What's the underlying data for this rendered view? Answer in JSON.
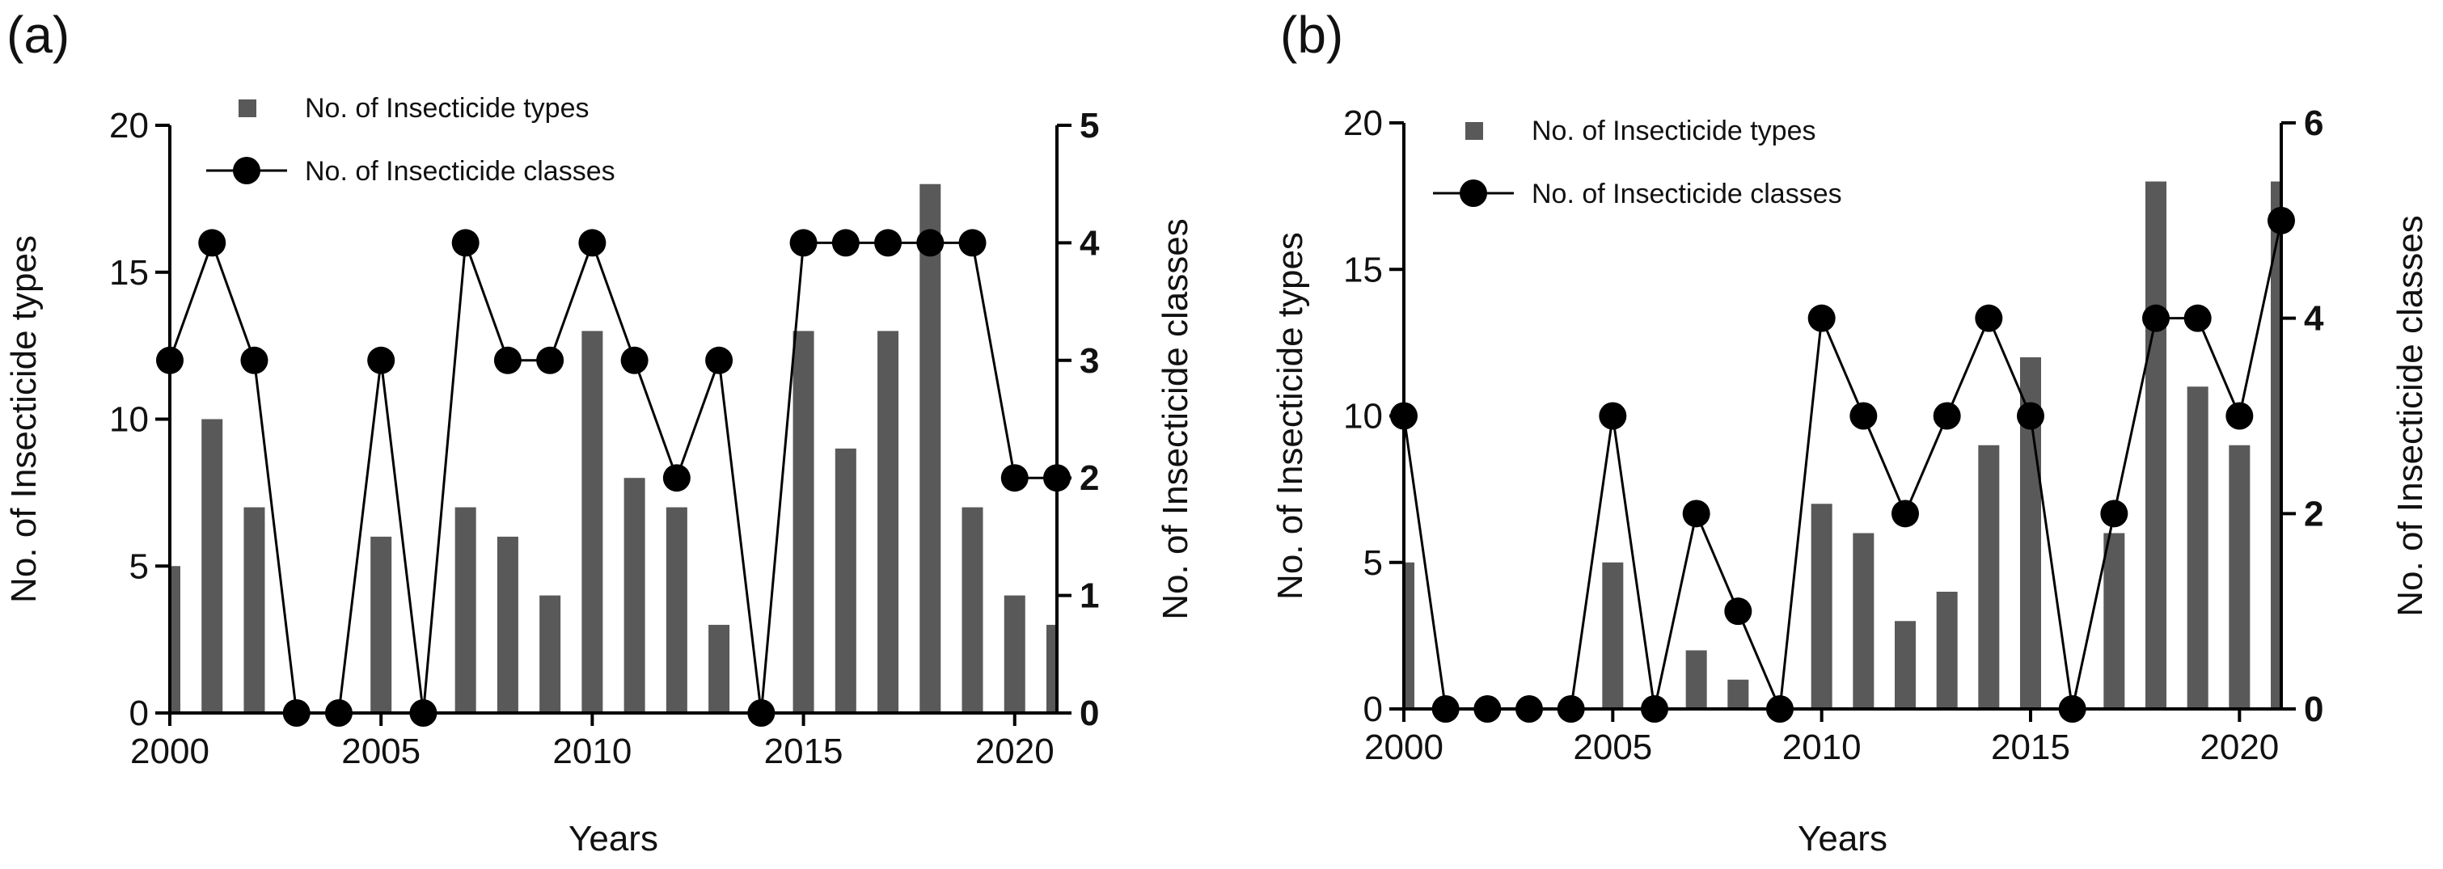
{
  "chart_data": [
    {
      "panel": "(a)",
      "type": "bar",
      "xlabel": "Years",
      "ylabel": "No. of Insecticide types",
      "y2label": "No. of Insecticide classes",
      "x": [
        2000,
        2001,
        2002,
        2003,
        2004,
        2005,
        2006,
        2007,
        2008,
        2009,
        2010,
        2011,
        2012,
        2013,
        2014,
        2015,
        2016,
        2017,
        2018,
        2019,
        2020,
        2021
      ],
      "xticks": [
        2000,
        2005,
        2010,
        2015,
        2020
      ],
      "xlim": [
        2000,
        2021
      ],
      "ylim": [
        0,
        20
      ],
      "yticks": [
        0,
        5,
        10,
        15,
        20
      ],
      "y2lim": [
        0,
        5
      ],
      "y2ticks": [
        0,
        1,
        2,
        3,
        4,
        5
      ],
      "legend": {
        "position": "top-left",
        "bars": "No. of Insecticide types",
        "line": "No. of Insecticide classes"
      },
      "series": [
        {
          "name": "No. of Insecticide types",
          "kind": "bar",
          "axis": "left",
          "color": "#595959",
          "values": [
            5,
            10,
            7,
            0,
            0,
            6,
            0,
            7,
            6,
            4,
            13,
            8,
            7,
            3,
            0,
            13,
            9,
            13,
            18,
            7,
            4,
            3
          ]
        },
        {
          "name": "No. of Insecticide classes",
          "kind": "line",
          "axis": "right",
          "color": "#000000",
          "values": [
            3,
            4,
            3,
            0,
            0,
            3,
            0,
            4,
            3,
            3,
            4,
            3,
            2,
            3,
            0,
            4,
            4,
            4,
            4,
            4,
            2,
            2
          ]
        }
      ]
    },
    {
      "panel": "(b)",
      "type": "bar",
      "xlabel": "Years",
      "ylabel": "No. of Insecticide types",
      "y2label": "No. of Insecticide classes",
      "x": [
        2000,
        2001,
        2002,
        2003,
        2004,
        2005,
        2006,
        2007,
        2008,
        2009,
        2010,
        2011,
        2012,
        2013,
        2014,
        2015,
        2016,
        2017,
        2018,
        2019,
        2020,
        2021
      ],
      "xticks": [
        2000,
        2005,
        2010,
        2015,
        2020
      ],
      "xlim": [
        2000,
        2021
      ],
      "ylim": [
        0,
        20
      ],
      "yticks": [
        0,
        5,
        10,
        15,
        20
      ],
      "y2lim": [
        0,
        6
      ],
      "y2ticks": [
        0,
        2,
        4,
        6
      ],
      "legend": {
        "position": "top-left",
        "bars": "No. of Insecticide types",
        "line": "No. of Insecticide classes"
      },
      "series": [
        {
          "name": "No. of Insecticide types",
          "kind": "bar",
          "axis": "left",
          "color": "#595959",
          "values": [
            5,
            0,
            0,
            0,
            0,
            5,
            0,
            2,
            1,
            0,
            7,
            6,
            3,
            4,
            9,
            12,
            0,
            6,
            18,
            11,
            9,
            18
          ]
        },
        {
          "name": "No. of Insecticide classes",
          "kind": "line",
          "axis": "right",
          "color": "#000000",
          "values": [
            3,
            0,
            0,
            0,
            0,
            3,
            0,
            2,
            1,
            0,
            4,
            3,
            2,
            3,
            4,
            3,
            0,
            2,
            4,
            4,
            3,
            5
          ]
        }
      ]
    }
  ]
}
